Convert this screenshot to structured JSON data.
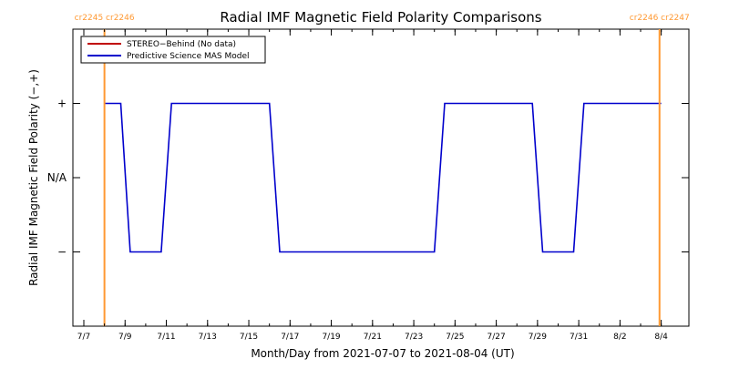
{
  "chart_data": {
    "type": "line",
    "title": "Radial IMF Magnetic Field Polarity Comparisons",
    "xlabel": "Month/Day from 2021-07-07 to 2021-08-04 (UT)",
    "ylabel": "Radial IMF Magnetic Field Polarity (−,+)",
    "x_start": "2021-07-07",
    "x_end": "2021-08-04",
    "xlim": [
      "2021-07-07",
      "2021-08-04"
    ],
    "ylim": [
      -2,
      2
    ],
    "x_ticks": [
      {
        "date": "2021-07-07",
        "label": "7/7"
      },
      {
        "date": "2021-07-09",
        "label": "7/9"
      },
      {
        "date": "2021-07-11",
        "label": "7/11"
      },
      {
        "date": "2021-07-13",
        "label": "7/13"
      },
      {
        "date": "2021-07-15",
        "label": "7/15"
      },
      {
        "date": "2021-07-17",
        "label": "7/17"
      },
      {
        "date": "2021-07-19",
        "label": "7/19"
      },
      {
        "date": "2021-07-21",
        "label": "7/21"
      },
      {
        "date": "2021-07-23",
        "label": "7/23"
      },
      {
        "date": "2021-07-25",
        "label": "7/25"
      },
      {
        "date": "2021-07-27",
        "label": "7/27"
      },
      {
        "date": "2021-07-29",
        "label": "7/29"
      },
      {
        "date": "2021-07-31",
        "label": "7/31"
      },
      {
        "date": "2021-08-02",
        "label": "8/2"
      },
      {
        "date": "2021-08-04",
        "label": "8/4"
      }
    ],
    "y_ticks": [
      {
        "value": 1,
        "label": "+"
      },
      {
        "value": 0,
        "label": "N/A"
      },
      {
        "value": -1,
        "label": "−"
      }
    ],
    "legend": {
      "position": "top-left",
      "entries": [
        {
          "label": "STEREO−Behind (No data)",
          "color": "#c00000"
        },
        {
          "label": "Predictive Science MAS Model",
          "color": "#0000cc"
        }
      ]
    },
    "carrington_markers": [
      {
        "date": "2021-07-08T00:00",
        "label": "cr2245 cr2246",
        "color": "#ff9933"
      },
      {
        "date": "2021-08-03T22:00",
        "label": "cr2246 cr2247",
        "color": "#ff9933"
      }
    ],
    "series": [
      {
        "name": "STEREO−Behind (No data)",
        "color": "#c00000",
        "points": []
      },
      {
        "name": "Predictive Science MAS Model",
        "color": "#0000cc",
        "points": [
          [
            "2021-07-08T00:00",
            1
          ],
          [
            "2021-07-08T19:00",
            1
          ],
          [
            "2021-07-09T06:00",
            -1
          ],
          [
            "2021-07-10T18:00",
            -1
          ],
          [
            "2021-07-11T06:00",
            1
          ],
          [
            "2021-07-16T00:00",
            1
          ],
          [
            "2021-07-16T12:00",
            -1
          ],
          [
            "2021-07-24T00:00",
            -1
          ],
          [
            "2021-07-24T12:00",
            1
          ],
          [
            "2021-07-28T18:00",
            1
          ],
          [
            "2021-07-29T06:00",
            -1
          ],
          [
            "2021-07-30T18:00",
            -1
          ],
          [
            "2021-07-31T06:00",
            1
          ],
          [
            "2021-08-04T00:00",
            1
          ]
        ]
      }
    ]
  }
}
